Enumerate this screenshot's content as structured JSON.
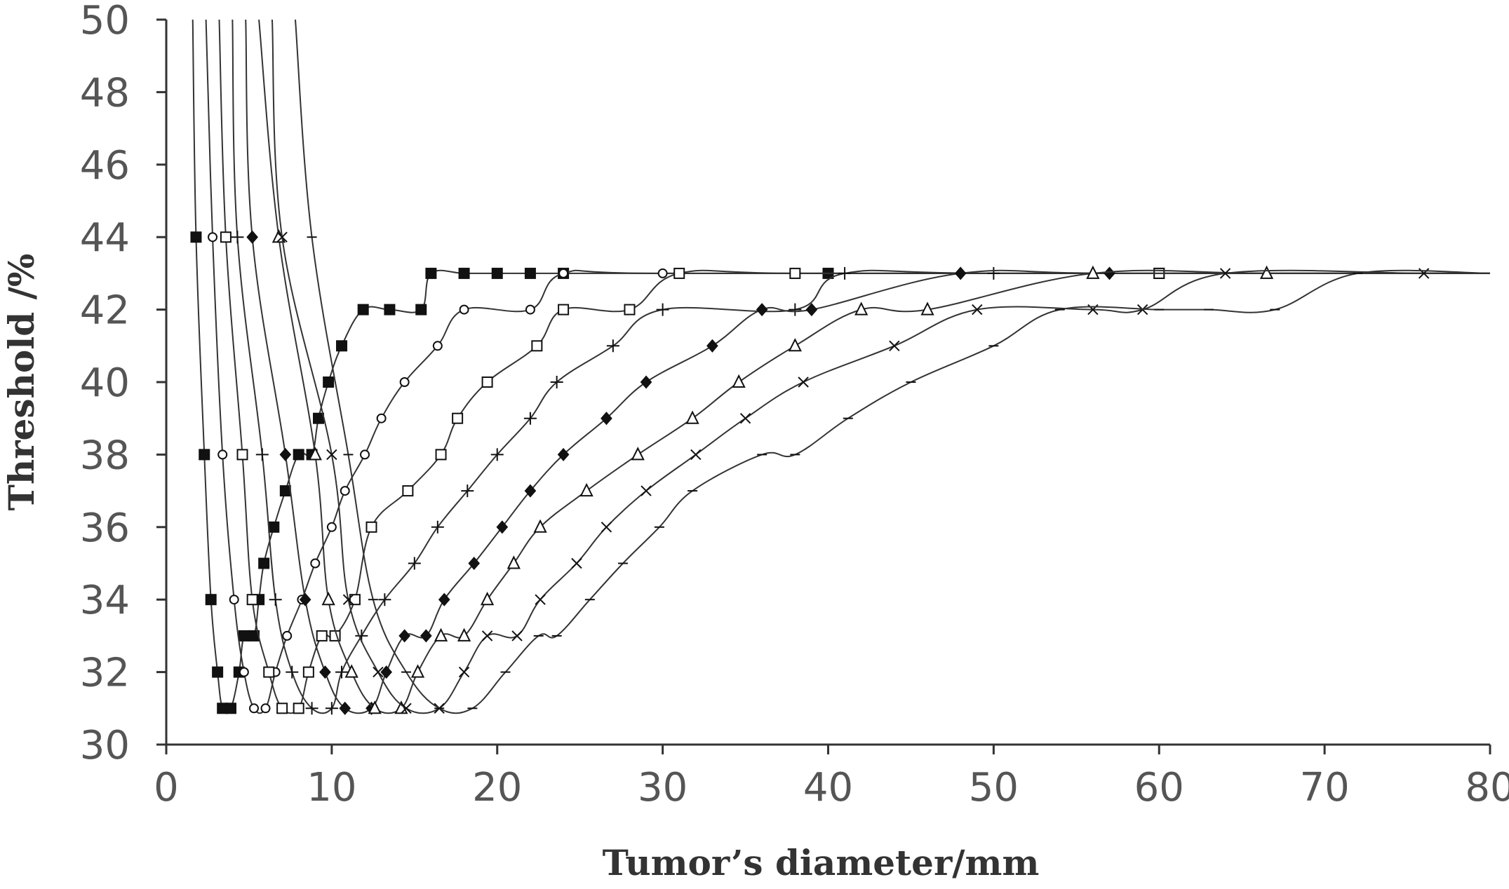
{
  "chart_data": {
    "type": "line",
    "xlabel": "Tumor’s diameter/mm",
    "ylabel": "Threshold /%",
    "xlim": [
      0,
      80
    ],
    "ylim": [
      30,
      50
    ],
    "x_ticks": [
      "0",
      "10",
      "20",
      "30",
      "40",
      "50",
      "60",
      "70",
      "80"
    ],
    "y_ticks": [
      "30",
      "32",
      "34",
      "36",
      "38",
      "40",
      "42",
      "44",
      "46",
      "48",
      "50"
    ],
    "grid": false,
    "legend": "none",
    "series": [
      {
        "marker": "filled-square",
        "points": [
          [
            1.6,
            50
          ],
          [
            1.8,
            44
          ],
          [
            2.3,
            38
          ],
          [
            2.7,
            34
          ],
          [
            3.1,
            32
          ],
          [
            3.4,
            31
          ],
          [
            3.9,
            31
          ],
          [
            4.4,
            32
          ],
          [
            4.7,
            33
          ],
          [
            5.3,
            33
          ],
          [
            5.6,
            34
          ],
          [
            5.9,
            35
          ],
          [
            6.5,
            36
          ],
          [
            7.2,
            37
          ],
          [
            8.0,
            38
          ],
          [
            8.8,
            38
          ],
          [
            9.2,
            39
          ],
          [
            9.8,
            40
          ],
          [
            10.6,
            41
          ],
          [
            11.9,
            42
          ],
          [
            13.5,
            42
          ],
          [
            15.4,
            42
          ],
          [
            16.0,
            43
          ],
          [
            18.0,
            43
          ],
          [
            20.0,
            43
          ],
          [
            22.0,
            43
          ],
          [
            24.0,
            43
          ],
          [
            40.0,
            43
          ],
          [
            60.0,
            43
          ],
          [
            80.0,
            43
          ]
        ]
      },
      {
        "marker": "open-circle",
        "points": [
          [
            2.4,
            50
          ],
          [
            2.8,
            44
          ],
          [
            3.4,
            38
          ],
          [
            4.1,
            34
          ],
          [
            4.7,
            32
          ],
          [
            5.3,
            31
          ],
          [
            6.0,
            31
          ],
          [
            6.6,
            32
          ],
          [
            7.3,
            33
          ],
          [
            8.2,
            34
          ],
          [
            9.0,
            35
          ],
          [
            10.0,
            36
          ],
          [
            10.8,
            37
          ],
          [
            12.0,
            38
          ],
          [
            13.0,
            39
          ],
          [
            14.4,
            40
          ],
          [
            16.4,
            41
          ],
          [
            18.0,
            42
          ],
          [
            22.0,
            42
          ],
          [
            24.0,
            43
          ],
          [
            30.0,
            43
          ],
          [
            60.0,
            43
          ],
          [
            80.0,
            43
          ]
        ]
      },
      {
        "marker": "open-square",
        "points": [
          [
            3.2,
            50
          ],
          [
            3.6,
            44
          ],
          [
            4.6,
            38
          ],
          [
            5.2,
            34
          ],
          [
            6.2,
            32
          ],
          [
            7.0,
            31
          ],
          [
            8.0,
            31
          ],
          [
            8.6,
            32
          ],
          [
            9.4,
            33
          ],
          [
            10.2,
            33
          ],
          [
            11.4,
            34
          ],
          [
            12.4,
            36
          ],
          [
            14.6,
            37
          ],
          [
            16.6,
            38
          ],
          [
            17.6,
            39
          ],
          [
            19.4,
            40
          ],
          [
            22.4,
            41
          ],
          [
            24.0,
            42
          ],
          [
            28.0,
            42
          ],
          [
            31.0,
            43
          ],
          [
            38.0,
            43
          ],
          [
            60.0,
            43
          ],
          [
            80.0,
            43
          ]
        ]
      },
      {
        "marker": "plus",
        "points": [
          [
            4.0,
            50
          ],
          [
            4.3,
            44
          ],
          [
            5.8,
            38
          ],
          [
            6.6,
            34
          ],
          [
            7.6,
            32
          ],
          [
            8.8,
            31
          ],
          [
            10.0,
            31
          ],
          [
            10.6,
            32
          ],
          [
            11.8,
            33
          ],
          [
            13.2,
            34
          ],
          [
            15.0,
            35
          ],
          [
            16.4,
            36
          ],
          [
            18.2,
            37
          ],
          [
            20.0,
            38
          ],
          [
            22.0,
            39
          ],
          [
            23.6,
            40
          ],
          [
            27.0,
            41
          ],
          [
            30.0,
            42
          ],
          [
            38.0,
            42
          ],
          [
            41.0,
            43
          ],
          [
            50.0,
            43
          ],
          [
            80.0,
            43
          ]
        ]
      },
      {
        "marker": "filled-diamond",
        "points": [
          [
            4.8,
            50
          ],
          [
            5.2,
            44
          ],
          [
            7.2,
            38
          ],
          [
            8.4,
            34
          ],
          [
            9.6,
            32
          ],
          [
            10.8,
            31
          ],
          [
            12.4,
            31
          ],
          [
            13.3,
            32
          ],
          [
            14.4,
            33
          ],
          [
            15.7,
            33
          ],
          [
            16.8,
            34
          ],
          [
            18.6,
            35
          ],
          [
            20.3,
            36
          ],
          [
            22.0,
            37
          ],
          [
            24.0,
            38
          ],
          [
            26.6,
            39
          ],
          [
            29.0,
            40
          ],
          [
            33.0,
            41
          ],
          [
            36.0,
            42
          ],
          [
            39.0,
            42
          ],
          [
            48.0,
            43
          ],
          [
            57.0,
            43
          ],
          [
            80.0,
            43
          ]
        ]
      },
      {
        "marker": "open-triangle",
        "points": [
          [
            5.6,
            50
          ],
          [
            6.8,
            44
          ],
          [
            9.0,
            38
          ],
          [
            9.8,
            34
          ],
          [
            11.2,
            32
          ],
          [
            12.6,
            31
          ],
          [
            14.2,
            31
          ],
          [
            15.2,
            32
          ],
          [
            16.6,
            33
          ],
          [
            18.0,
            33
          ],
          [
            19.4,
            34
          ],
          [
            21.0,
            35
          ],
          [
            22.6,
            36
          ],
          [
            25.4,
            37
          ],
          [
            28.5,
            38
          ],
          [
            31.8,
            39
          ],
          [
            34.6,
            40
          ],
          [
            38.0,
            41
          ],
          [
            42.0,
            42
          ],
          [
            46.0,
            42
          ],
          [
            56.0,
            43
          ],
          [
            66.5,
            43
          ],
          [
            80.0,
            43
          ]
        ]
      },
      {
        "marker": "x",
        "points": [
          [
            6.4,
            50
          ],
          [
            7.0,
            44
          ],
          [
            10.0,
            38
          ],
          [
            11.0,
            34
          ],
          [
            12.8,
            32
          ],
          [
            14.5,
            31
          ],
          [
            16.5,
            31
          ],
          [
            18.0,
            32
          ],
          [
            19.4,
            33
          ],
          [
            21.2,
            33
          ],
          [
            22.6,
            34
          ],
          [
            24.8,
            35
          ],
          [
            26.6,
            36
          ],
          [
            29.0,
            37
          ],
          [
            32.0,
            38
          ],
          [
            35.0,
            39
          ],
          [
            38.5,
            40
          ],
          [
            44.0,
            41
          ],
          [
            49.0,
            42
          ],
          [
            56.0,
            42
          ],
          [
            59.0,
            42
          ],
          [
            64.0,
            43
          ],
          [
            76.0,
            43
          ],
          [
            80.0,
            43
          ]
        ]
      },
      {
        "marker": "dash",
        "points": [
          [
            7.8,
            50
          ],
          [
            8.8,
            44
          ],
          [
            11.0,
            38
          ],
          [
            12.5,
            34
          ],
          [
            14.5,
            32
          ],
          [
            16.5,
            31
          ],
          [
            18.5,
            31
          ],
          [
            20.5,
            32
          ],
          [
            22.5,
            33
          ],
          [
            23.6,
            33
          ],
          [
            25.6,
            34
          ],
          [
            27.6,
            35
          ],
          [
            29.8,
            36
          ],
          [
            31.8,
            37
          ],
          [
            36.0,
            38
          ],
          [
            38.0,
            38
          ],
          [
            41.2,
            39
          ],
          [
            45.0,
            40
          ],
          [
            50.0,
            41
          ],
          [
            54.0,
            42
          ],
          [
            60.0,
            42
          ],
          [
            63.0,
            42
          ],
          [
            67.0,
            42
          ],
          [
            72.0,
            43
          ],
          [
            80.0,
            43
          ]
        ]
      }
    ]
  }
}
